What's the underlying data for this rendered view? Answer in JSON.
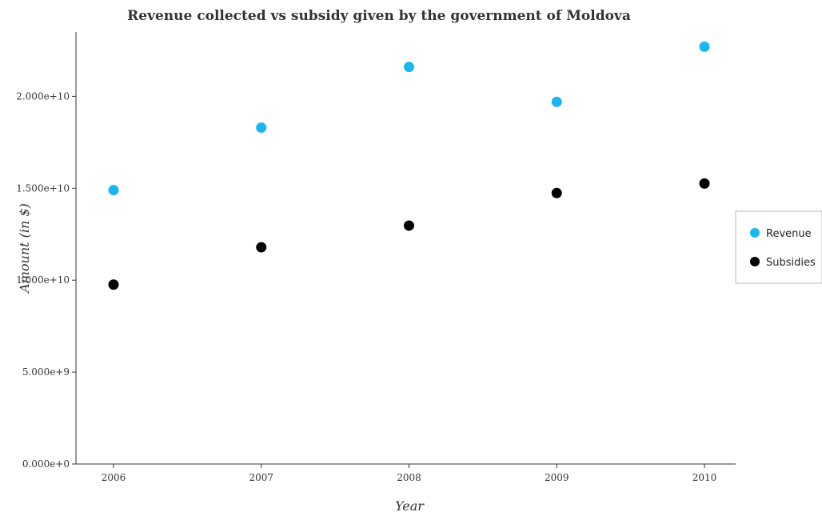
{
  "chart_data": {
    "type": "scatter",
    "title": "Revenue collected vs subsidy given by the government of Moldova",
    "xlabel": "Year",
    "ylabel": "Amount (in $)",
    "x": [
      "2006",
      "2007",
      "2008",
      "2009",
      "2010"
    ],
    "ylim": [
      0,
      23500000000
    ],
    "yticks": [
      0,
      5000000000,
      10000000000,
      15000000000,
      20000000000
    ],
    "ytick_labels": [
      "0.000e+0",
      "5.000e+9",
      "1.000e+10",
      "1.500e+10",
      "2.000e+10"
    ],
    "grid": false,
    "legend_position": "right",
    "series": [
      {
        "name": "Revenue",
        "color": "#1ab6ee",
        "values": [
          14900000000,
          18300000000,
          21600000000,
          19700000000,
          22700000000
        ]
      },
      {
        "name": "Subsidies",
        "color": "#000000",
        "values": [
          9760000000,
          11790000000,
          12970000000,
          14740000000,
          15260000000
        ]
      }
    ]
  }
}
